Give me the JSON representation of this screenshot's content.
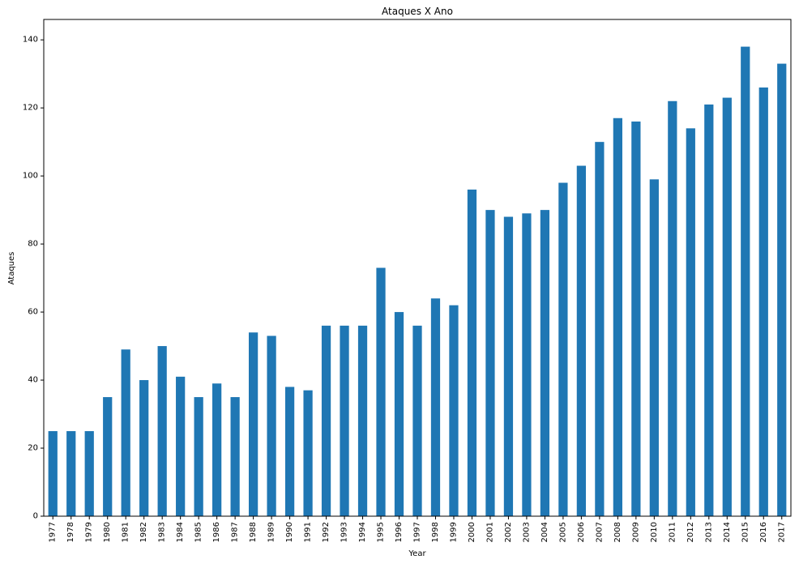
{
  "chart_data": {
    "type": "bar",
    "title": "Ataques X Ano",
    "xlabel": "Year",
    "ylabel": "Ataques",
    "ylim": [
      0,
      146
    ],
    "yticks": [
      0,
      20,
      40,
      60,
      80,
      100,
      120,
      140
    ],
    "grid": false,
    "color": "#1f77b4",
    "categories": [
      "1977",
      "1978",
      "1979",
      "1980",
      "1981",
      "1982",
      "1983",
      "1984",
      "1985",
      "1986",
      "1987",
      "1988",
      "1989",
      "1990",
      "1991",
      "1992",
      "1993",
      "1994",
      "1995",
      "1996",
      "1997",
      "1998",
      "1999",
      "2000",
      "2001",
      "2002",
      "2003",
      "2004",
      "2005",
      "2006",
      "2007",
      "2008",
      "2009",
      "2010",
      "2011",
      "2012",
      "2013",
      "2014",
      "2015",
      "2016",
      "2017"
    ],
    "values": [
      25,
      25,
      25,
      35,
      49,
      40,
      50,
      41,
      35,
      39,
      35,
      54,
      53,
      38,
      37,
      56,
      56,
      56,
      73,
      60,
      56,
      64,
      62,
      96,
      90,
      88,
      89,
      90,
      98,
      103,
      110,
      117,
      116,
      99,
      122,
      114,
      121,
      123,
      138,
      126,
      133
    ]
  }
}
